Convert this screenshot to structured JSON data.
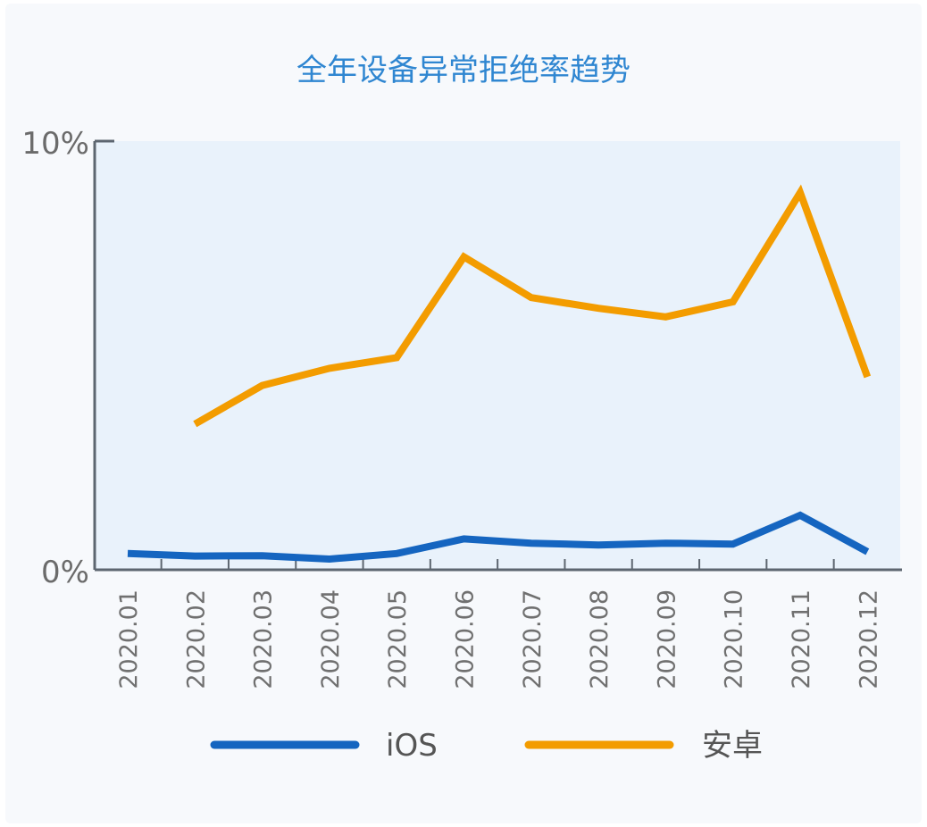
{
  "chart_data": {
    "type": "line",
    "title": "全年设备异常拒绝率趋势",
    "categories": [
      "2020.01",
      "2020.02",
      "2020.03",
      "2020.04",
      "2020.05",
      "2020.06",
      "2020.07",
      "2020.08",
      "2020.09",
      "2020.10",
      "2020.11",
      "2020.12"
    ],
    "ylim": [
      0,
      10
    ],
    "y_ticks": [
      "0%",
      "10%"
    ],
    "grid": false,
    "legend_position": "bottom",
    "series": [
      {
        "name": "iOS",
        "color": "#1565c0",
        "values": [
          0.38,
          0.32,
          0.33,
          0.25,
          0.38,
          0.72,
          0.62,
          0.58,
          0.62,
          0.6,
          1.27,
          0.42
        ]
      },
      {
        "name": "安卓",
        "color": "#f39c00",
        "values": [
          null,
          3.4,
          4.3,
          4.7,
          4.95,
          7.3,
          6.35,
          6.1,
          5.9,
          6.25,
          8.8,
          4.5
        ]
      }
    ]
  }
}
